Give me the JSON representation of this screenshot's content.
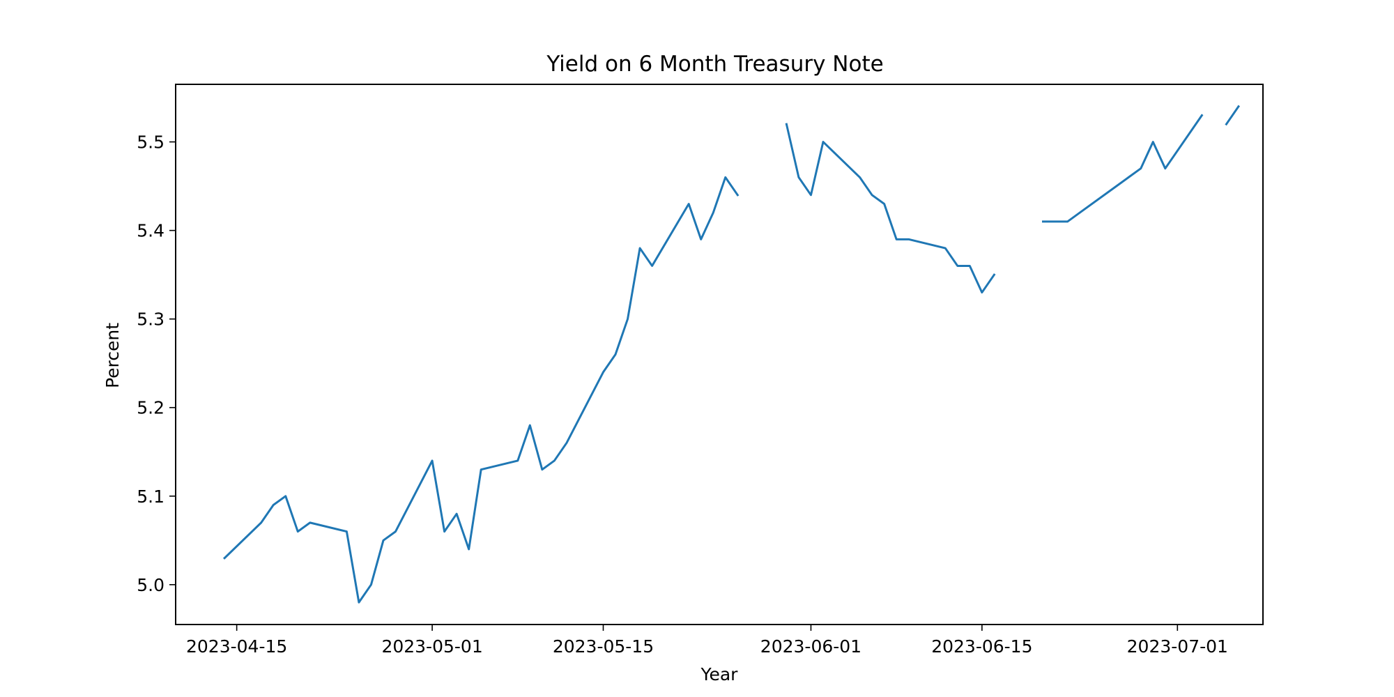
{
  "chart_data": {
    "type": "line",
    "title": "Yield on 6 Month Treasury Note",
    "xlabel": "Year",
    "ylabel": "Percent",
    "xlim": [
      "2023-04-10",
      "2023-07-08"
    ],
    "ylim": [
      4.955,
      5.565
    ],
    "grid": false,
    "legend": "none",
    "x_ticks": [
      "2023-04-15",
      "2023-05-01",
      "2023-05-15",
      "2023-06-01",
      "2023-06-15",
      "2023-07-01"
    ],
    "y_ticks": [
      "5.0",
      "5.1",
      "5.2",
      "5.3",
      "5.4",
      "5.5"
    ],
    "series": [
      {
        "color": "#1f77b4",
        "points": [
          [
            "2023-04-14",
            5.03
          ],
          [
            "2023-04-17",
            5.07
          ],
          [
            "2023-04-18",
            5.09
          ],
          [
            "2023-04-19",
            5.1
          ],
          [
            "2023-04-20",
            5.06
          ],
          [
            "2023-04-21",
            5.07
          ],
          [
            "2023-04-24",
            5.06
          ],
          [
            "2023-04-25",
            4.98
          ],
          [
            "2023-04-26",
            5.0
          ],
          [
            "2023-04-27",
            5.05
          ],
          [
            "2023-04-28",
            5.06
          ],
          [
            "2023-05-01",
            5.14
          ],
          [
            "2023-05-02",
            5.06
          ],
          [
            "2023-05-03",
            5.08
          ],
          [
            "2023-05-04",
            5.04
          ],
          [
            "2023-05-05",
            5.13
          ],
          [
            "2023-05-08",
            5.14
          ],
          [
            "2023-05-09",
            5.18
          ],
          [
            "2023-05-10",
            5.13
          ],
          [
            "2023-05-11",
            5.14
          ],
          [
            "2023-05-12",
            5.16
          ],
          [
            "2023-05-15",
            5.24
          ],
          [
            "2023-05-16",
            5.26
          ],
          [
            "2023-05-17",
            5.3
          ],
          [
            "2023-05-18",
            5.38
          ],
          [
            "2023-05-19",
            5.36
          ],
          [
            "2023-05-22",
            5.43
          ],
          [
            "2023-05-23",
            5.39
          ],
          [
            "2023-05-24",
            5.42
          ],
          [
            "2023-05-25",
            5.46
          ],
          [
            "2023-05-26",
            5.44
          ],
          [
            "2023-05-29",
            null
          ],
          [
            "2023-05-30",
            5.52
          ],
          [
            "2023-05-31",
            5.46
          ],
          [
            "2023-06-01",
            5.44
          ],
          [
            "2023-06-02",
            5.5
          ],
          [
            "2023-06-05",
            5.46
          ],
          [
            "2023-06-06",
            5.44
          ],
          [
            "2023-06-07",
            5.43
          ],
          [
            "2023-06-08",
            5.39
          ],
          [
            "2023-06-09",
            5.39
          ],
          [
            "2023-06-12",
            5.38
          ],
          [
            "2023-06-13",
            5.36
          ],
          [
            "2023-06-14",
            5.36
          ],
          [
            "2023-06-15",
            5.33
          ],
          [
            "2023-06-16",
            5.35
          ],
          [
            "2023-06-19",
            null
          ],
          [
            "2023-06-20",
            5.41
          ],
          [
            "2023-06-21",
            5.41
          ],
          [
            "2023-06-22",
            5.41
          ],
          [
            "2023-06-23",
            5.42
          ],
          [
            "2023-06-26",
            5.45
          ],
          [
            "2023-06-27",
            5.46
          ],
          [
            "2023-06-28",
            5.47
          ],
          [
            "2023-06-29",
            5.5
          ],
          [
            "2023-06-30",
            5.47
          ],
          [
            "2023-07-03",
            5.53
          ],
          [
            "2023-07-04",
            null
          ],
          [
            "2023-07-05",
            5.52
          ],
          [
            "2023-07-06",
            5.54
          ]
        ]
      }
    ]
  }
}
